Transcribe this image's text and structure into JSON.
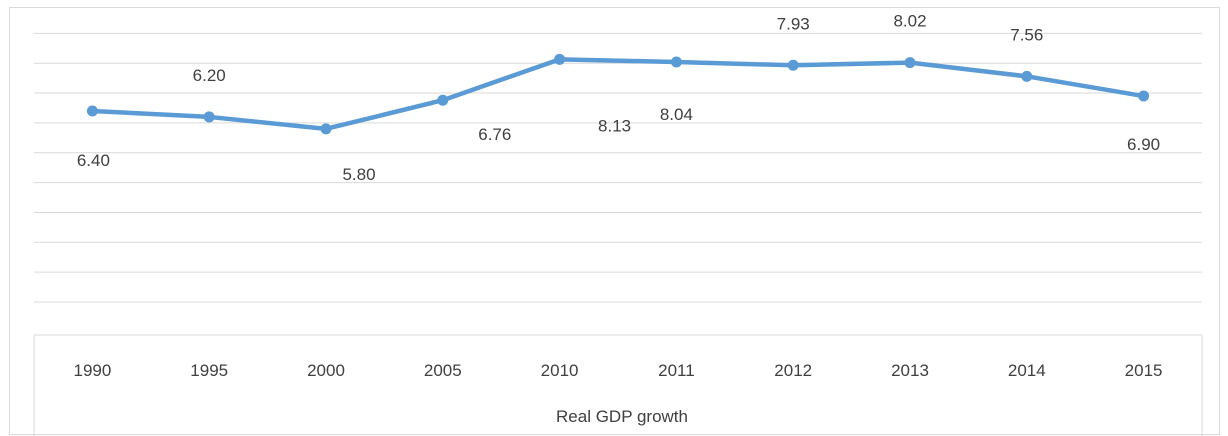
{
  "chart_data": {
    "type": "line",
    "categories": [
      "1990",
      "1995",
      "2000",
      "2005",
      "2010",
      "2011",
      "2012",
      "2013",
      "2014",
      "2015"
    ],
    "series": [
      {
        "values": [
          6.4,
          6.2,
          5.8,
          6.76,
          8.13,
          8.04,
          7.93,
          8.02,
          7.56,
          6.9
        ],
        "labels": [
          "6.40",
          "6.20",
          "5.80",
          "6.76",
          "8.13",
          "8.04",
          "7.93",
          "8.02",
          "7.56",
          "6.90"
        ]
      }
    ],
    "xlabel": "Real GDP growth",
    "ylabel": "",
    "title": "",
    "ylim": [
      0,
      10
    ],
    "grid": true,
    "line_color": "#5b9bd5",
    "grid_color": "#d9d9d9"
  }
}
